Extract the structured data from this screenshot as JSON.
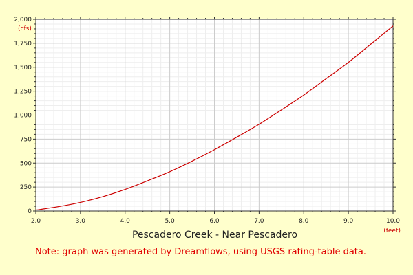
{
  "chart_data": {
    "type": "line",
    "title": "Pescadero Creek - Near Pescadero",
    "xlabel": "",
    "ylabel": "",
    "x_unit": "(feet)",
    "y_unit": "(cfs)",
    "xlim": [
      2.0,
      10.0
    ],
    "ylim": [
      0,
      2000
    ],
    "x_ticks": [
      "2.0",
      "3.0",
      "4.0",
      "5.0",
      "6.0",
      "7.0",
      "8.0",
      "9.0",
      "10.0"
    ],
    "y_ticks": [
      "0",
      "250",
      "500",
      "750",
      "1,000",
      "1,250",
      "1,500",
      "1,750",
      "2,000"
    ],
    "grid": true,
    "legend": "none",
    "note": "Note: graph was generated by Dreamflows, using USGS rating-table data.",
    "colors": {
      "background": "#ffffcc",
      "plot": "#ffffff",
      "line": "#cc0000",
      "grid": "#cccccc",
      "minor_grid": "#eeeeee"
    },
    "series": [
      {
        "x": [
          2.0,
          2.5,
          3.0,
          3.5,
          4.0,
          4.5,
          5.0,
          5.5,
          6.0,
          6.5,
          7.0,
          7.5,
          8.0,
          8.5,
          9.0,
          9.5,
          10.0
        ],
        "y": [
          10,
          45,
          90,
          150,
          225,
          315,
          410,
          520,
          640,
          770,
          905,
          1055,
          1210,
          1380,
          1550,
          1740,
          1930
        ]
      }
    ]
  }
}
